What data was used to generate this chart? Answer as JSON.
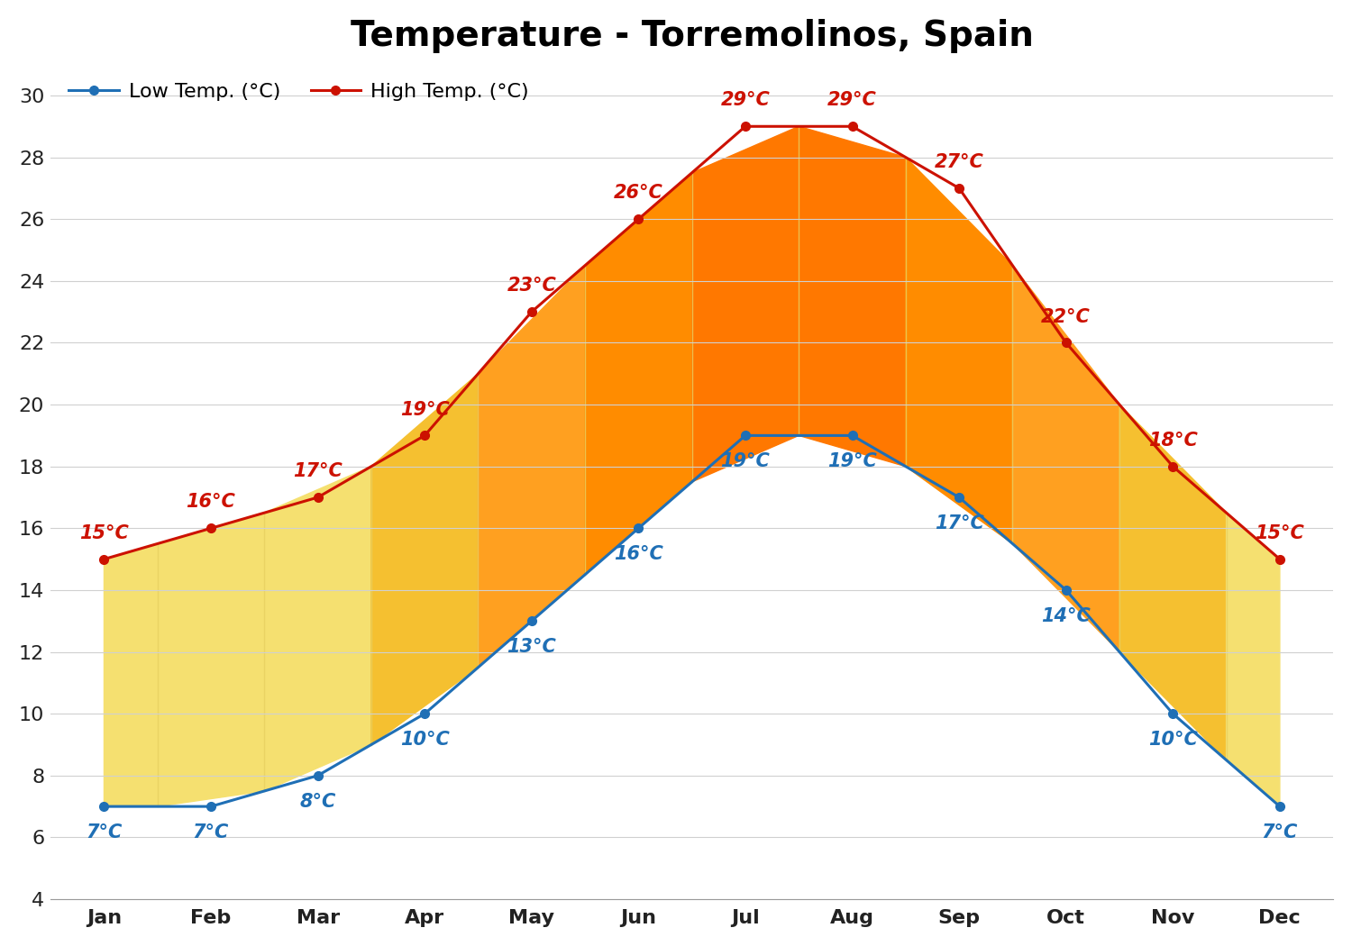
{
  "title": "Temperature - Torremolinos, Spain",
  "months": [
    "Jan",
    "Feb",
    "Mar",
    "Apr",
    "May",
    "Jun",
    "Jul",
    "Aug",
    "Sep",
    "Oct",
    "Nov",
    "Dec"
  ],
  "low_temps": [
    7,
    7,
    8,
    10,
    13,
    16,
    19,
    19,
    17,
    14,
    10,
    7
  ],
  "high_temps": [
    15,
    16,
    17,
    19,
    23,
    26,
    29,
    29,
    27,
    22,
    18,
    15
  ],
  "low_color": "#1f6fb5",
  "high_color": "#cc1100",
  "low_label": "Low Temp. (°C)",
  "high_label": "High Temp. (°C)",
  "ylim": [
    4,
    31
  ],
  "yticks": [
    4,
    6,
    8,
    10,
    12,
    14,
    16,
    18,
    20,
    22,
    24,
    26,
    28,
    30
  ],
  "background_color": "#ffffff",
  "grid_color": "#d0d0d0",
  "title_fontsize": 28,
  "label_fontsize": 16,
  "tick_fontsize": 16,
  "annot_fontsize": 15,
  "column_colors": [
    "#F5E070",
    "#F5E070",
    "#F5E070",
    "#F5C030",
    "#FFA020",
    "#FF8C00",
    "#FF7800",
    "#FF7800",
    "#FF8C00",
    "#FFA020",
    "#F5C030",
    "#F5E070"
  ],
  "col_sep_color": "#E8D060",
  "marker_size": 7,
  "line_width": 2.2
}
